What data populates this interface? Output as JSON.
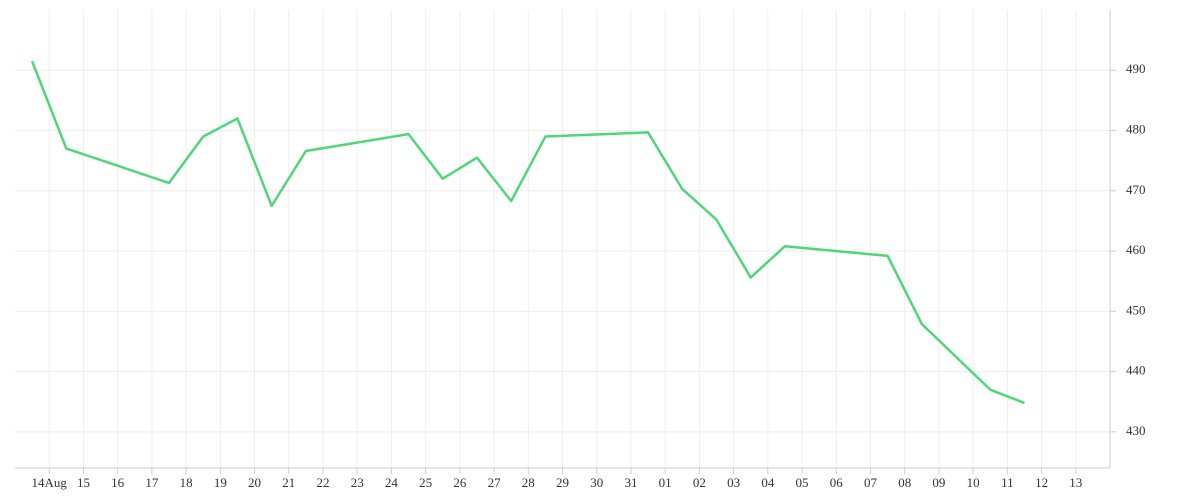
{
  "chart_data": {
    "type": "line",
    "x": [
      -0.5,
      0.5,
      3.5,
      4.5,
      5.5,
      6.5,
      7.5,
      10.5,
      11.5,
      12.5,
      13.5,
      14.5,
      17.5,
      18.5,
      19.5,
      20.5,
      21.5,
      24.5,
      25.5,
      27.5,
      28.5
    ],
    "series": [
      {
        "color": "#4fd67a",
        "values": [
          491.5,
          477,
          471.3,
          479,
          482,
          467.5,
          476.6,
          479.4,
          472,
          475.5,
          468.3,
          479,
          479.7,
          470.3,
          465.2,
          455.6,
          460.8,
          459.2,
          447.9,
          437,
          434.8
        ]
      }
    ],
    "xlim": [
      -1,
      31
    ],
    "xticks": [
      {
        "value": 0,
        "label": "14Aug"
      },
      {
        "value": 1,
        "label": "15"
      },
      {
        "value": 2,
        "label": "16"
      },
      {
        "value": 3,
        "label": "17"
      },
      {
        "value": 4,
        "label": "18"
      },
      {
        "value": 5,
        "label": "19"
      },
      {
        "value": 6,
        "label": "20"
      },
      {
        "value": 7,
        "label": "21"
      },
      {
        "value": 8,
        "label": "22"
      },
      {
        "value": 9,
        "label": "23"
      },
      {
        "value": 10,
        "label": "24"
      },
      {
        "value": 11,
        "label": "25"
      },
      {
        "value": 12,
        "label": "26"
      },
      {
        "value": 13,
        "label": "27"
      },
      {
        "value": 14,
        "label": "28"
      },
      {
        "value": 15,
        "label": "29"
      },
      {
        "value": 16,
        "label": "30"
      },
      {
        "value": 17,
        "label": "31"
      },
      {
        "value": 18,
        "label": "01"
      },
      {
        "value": 19,
        "label": "02"
      },
      {
        "value": 20,
        "label": "03"
      },
      {
        "value": 21,
        "label": "04"
      },
      {
        "value": 22,
        "label": "05"
      },
      {
        "value": 23,
        "label": "06"
      },
      {
        "value": 24,
        "label": "07"
      },
      {
        "value": 25,
        "label": "08"
      },
      {
        "value": 26,
        "label": "09"
      },
      {
        "value": 27,
        "label": "10"
      },
      {
        "value": 28,
        "label": "11"
      },
      {
        "value": 29,
        "label": "12"
      },
      {
        "value": 30,
        "label": "13"
      }
    ],
    "ylim": [
      424,
      500
    ],
    "yticks": [
      430,
      440,
      450,
      460,
      470,
      480,
      490
    ],
    "grid": true
  }
}
